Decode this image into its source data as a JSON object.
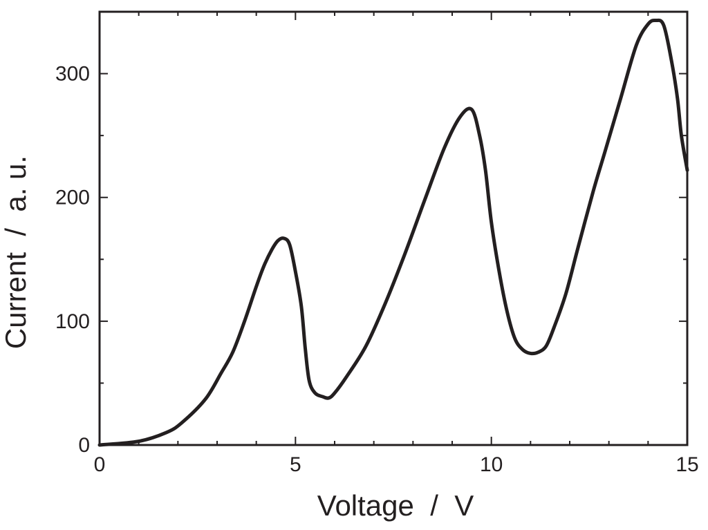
{
  "chart_data": {
    "type": "line",
    "xlabel": "Voltage  /  V",
    "ylabel": "Current  /  a. u.",
    "xlim": [
      0,
      15
    ],
    "ylim": [
      0,
      350
    ],
    "x_ticks": [
      0,
      5,
      10,
      15
    ],
    "x_tick_labels": [
      "0",
      "5",
      "10",
      "15"
    ],
    "x_minor_ticks": [
      1,
      2,
      3,
      4,
      6,
      7,
      8,
      9,
      11,
      12,
      13,
      14
    ],
    "y_ticks": [
      0,
      100,
      200,
      300
    ],
    "y_tick_labels": [
      "0",
      "100",
      "200",
      "300"
    ],
    "y_minor_ticks": [
      50,
      150,
      250
    ],
    "grid": false,
    "line_color": "#231f20",
    "series": [
      {
        "x": [
          0,
          1,
          1.7,
          2.1,
          2.7,
          3.1,
          3.4,
          3.7,
          4.0,
          4.2,
          4.4,
          4.55,
          4.7,
          4.85,
          5.0,
          5.15,
          5.25,
          5.35,
          5.5,
          5.7,
          5.85,
          6.0,
          6.3,
          6.8,
          7.3,
          7.8,
          8.3,
          8.8,
          9.2,
          9.5,
          9.7,
          9.85,
          10.0,
          10.2,
          10.4,
          10.6,
          10.8,
          11.0,
          11.2,
          11.4,
          11.6,
          11.9,
          12.2,
          12.6,
          12.9,
          13.3,
          13.7,
          14.0,
          14.2,
          14.4,
          14.6,
          14.75,
          14.85,
          15.0
        ],
        "y": [
          0,
          3,
          10,
          18,
          37,
          58,
          75,
          100,
          128,
          145,
          158,
          165,
          167,
          162,
          140,
          112,
          78,
          52,
          42,
          39,
          38,
          42,
          55,
          80,
          115,
          155,
          198,
          240,
          265,
          271,
          250,
          222,
          180,
          140,
          108,
          86,
          77,
          74,
          75,
          80,
          95,
          122,
          158,
          205,
          237,
          280,
          323,
          340,
          343,
          339,
          310,
          280,
          250,
          222
        ]
      }
    ]
  }
}
